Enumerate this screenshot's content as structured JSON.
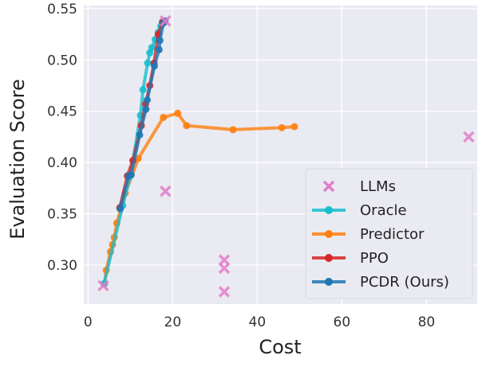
{
  "chart_data": {
    "type": "line",
    "title": "",
    "xlabel": "Cost",
    "ylabel": "Evaluation Score",
    "xlim": [
      -1,
      92
    ],
    "ylim": [
      0.262,
      0.553
    ],
    "xticks": [
      0,
      20,
      40,
      60,
      80
    ],
    "yticks": [
      0.3,
      0.35,
      0.4,
      0.45,
      0.5,
      0.55
    ],
    "xtick_labels": [
      "0",
      "20",
      "40",
      "60",
      "80"
    ],
    "ytick_labels": [
      "0.30",
      "0.35",
      "0.40",
      "0.45",
      "0.50",
      "0.55"
    ],
    "grid": true,
    "legend_position": "bottom-right",
    "scatter": {
      "name": "LLMs",
      "color": "#e17fc9",
      "points": [
        {
          "x": 3.6,
          "y": 0.28
        },
        {
          "x": 18.3,
          "y": 0.538
        },
        {
          "x": 18.3,
          "y": 0.372
        },
        {
          "x": 32.2,
          "y": 0.305
        },
        {
          "x": 32.2,
          "y": 0.297
        },
        {
          "x": 32.2,
          "y": 0.274
        },
        {
          "x": 90.0,
          "y": 0.425
        }
      ]
    },
    "series": [
      {
        "name": "Predictor",
        "color": "#ff7f0e",
        "x": [
          3.9,
          4.3,
          5.3,
          5.8,
          6.2,
          6.8,
          8.8,
          11.9,
          17.8,
          21.2,
          23.3,
          34.3,
          45.8,
          48.8
        ],
        "y": [
          0.282,
          0.295,
          0.313,
          0.32,
          0.327,
          0.341,
          0.37,
          0.404,
          0.444,
          0.448,
          0.436,
          0.432,
          0.434,
          0.435
        ]
      },
      {
        "name": "Oracle",
        "color": "#17becf",
        "x": [
          3.8,
          8.2,
          10.0,
          12.4,
          13.0,
          14.1,
          14.6,
          15.1,
          15.9,
          16.6,
          17.2,
          17.7
        ],
        "y": [
          0.282,
          0.358,
          0.387,
          0.446,
          0.471,
          0.497,
          0.507,
          0.512,
          0.52,
          0.527,
          0.533,
          0.536
        ]
      },
      {
        "name": "PPO",
        "color": "#d62728",
        "x": [
          7.5,
          9.3,
          10.6,
          12.6,
          13.6,
          14.6,
          15.6,
          16.6,
          17.6
        ],
        "y": [
          0.356,
          0.387,
          0.402,
          0.436,
          0.457,
          0.475,
          0.497,
          0.525,
          0.537
        ]
      },
      {
        "name": "PCDR (Ours)",
        "color": "#1f77b4",
        "x": [
          7.6,
          9.6,
          10.2,
          12.2,
          13.7,
          14.0,
          15.7,
          16.8,
          17.0,
          17.8,
          18.2
        ],
        "y": [
          0.355,
          0.387,
          0.388,
          0.427,
          0.452,
          0.461,
          0.494,
          0.51,
          0.519,
          0.536,
          0.538
        ]
      }
    ],
    "legend": [
      "LLMs",
      "Oracle",
      "Predictor",
      "PPO",
      "PCDR (Ours)"
    ]
  }
}
